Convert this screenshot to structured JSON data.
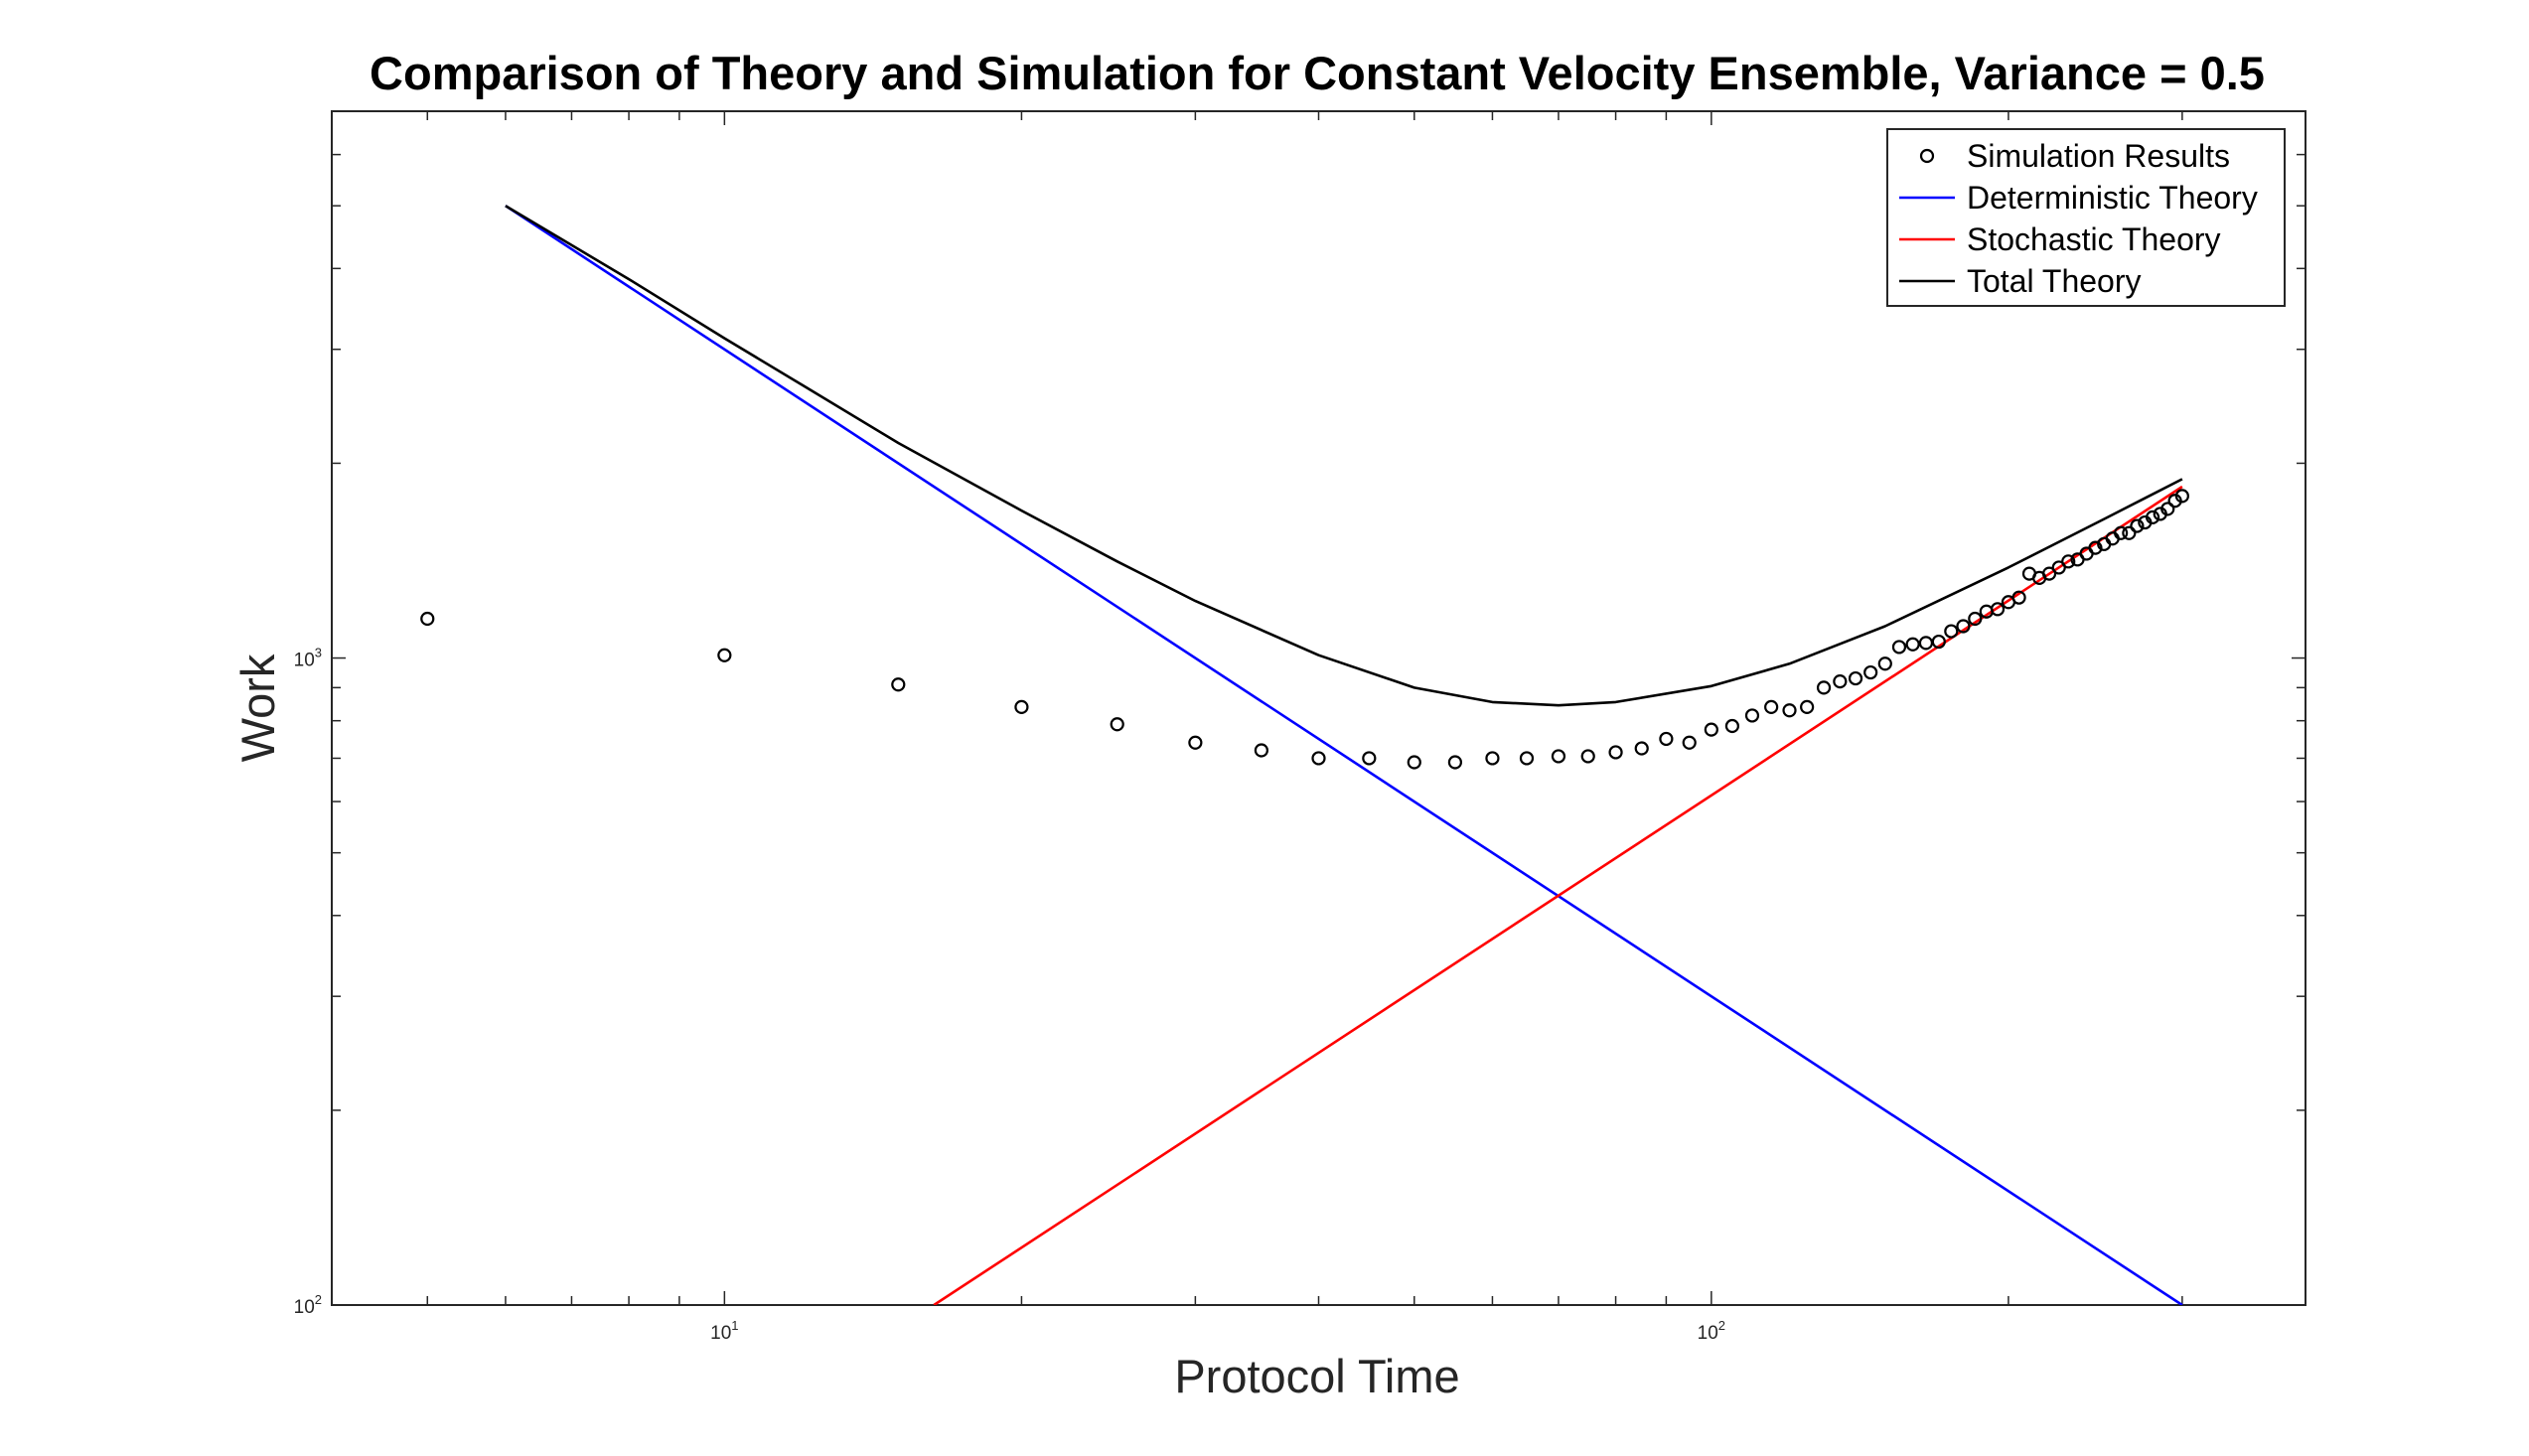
{
  "chart_data": {
    "type": "scatter",
    "title": "Comparison of Theory and Simulation for Constant Velocity Ensemble, Variance = 0.5",
    "xlabel": "Protocol Time",
    "ylabel": "Work",
    "x_scale": "log",
    "y_scale": "log",
    "xlim": [
      4,
      400
    ],
    "ylim": [
      100,
      7000
    ],
    "grid": false,
    "legend_position": "top-right",
    "x_ticks": [
      {
        "value": 10,
        "base": "10",
        "exp": "1"
      },
      {
        "value": 100,
        "base": "10",
        "exp": "2"
      }
    ],
    "y_ticks": [
      {
        "value": 100,
        "base": "10",
        "exp": "2"
      },
      {
        "value": 1000,
        "base": "10",
        "exp": "3"
      }
    ],
    "series": [
      {
        "name": "Simulation Results",
        "kind": "markers",
        "color": "#000000",
        "x": [
          5,
          10,
          15,
          20,
          25,
          30,
          35,
          40,
          45,
          50,
          55,
          60,
          65,
          70,
          75,
          80,
          85,
          90,
          95,
          100,
          105,
          110,
          115,
          120,
          125,
          130,
          135,
          140,
          145,
          150,
          155,
          160,
          165,
          170,
          175,
          180,
          185,
          190,
          195,
          200,
          205,
          210,
          215,
          220,
          225,
          230,
          235,
          240,
          245,
          250,
          255,
          260,
          265,
          270,
          275,
          280,
          285,
          290,
          295,
          300
        ],
        "y": [
          1150,
          1010,
          910,
          840,
          790,
          740,
          720,
          700,
          700,
          690,
          690,
          700,
          700,
          705,
          705,
          715,
          725,
          750,
          740,
          775,
          785,
          815,
          840,
          830,
          840,
          900,
          920,
          930,
          950,
          980,
          1040,
          1050,
          1055,
          1060,
          1100,
          1120,
          1150,
          1180,
          1190,
          1220,
          1240,
          1350,
          1330,
          1350,
          1380,
          1410,
          1420,
          1450,
          1480,
          1500,
          1530,
          1560,
          1560,
          1600,
          1620,
          1650,
          1670,
          1700,
          1750,
          1780
        ]
      },
      {
        "name": "Deterministic Theory",
        "kind": "line",
        "color": "#0000ff",
        "x": [
          6,
          300
        ],
        "y": [
          5000,
          100
        ]
      },
      {
        "name": "Stochastic Theory",
        "kind": "line",
        "color": "#ff0000",
        "x": [
          16.3,
          300
        ],
        "y": [
          100,
          1840
        ]
      },
      {
        "name": "Total Theory",
        "kind": "line",
        "color": "#000000",
        "x": [
          6,
          8,
          10,
          12,
          15,
          20,
          25,
          30,
          40,
          50,
          60,
          70,
          80,
          100,
          120,
          150,
          200,
          250,
          300
        ],
        "y": [
          5000,
          3850,
          3120,
          2640,
          2150,
          1690,
          1410,
          1225,
          1010,
          900,
          855,
          845,
          855,
          905,
          980,
          1120,
          1380,
          1640,
          1890
        ]
      }
    ]
  }
}
